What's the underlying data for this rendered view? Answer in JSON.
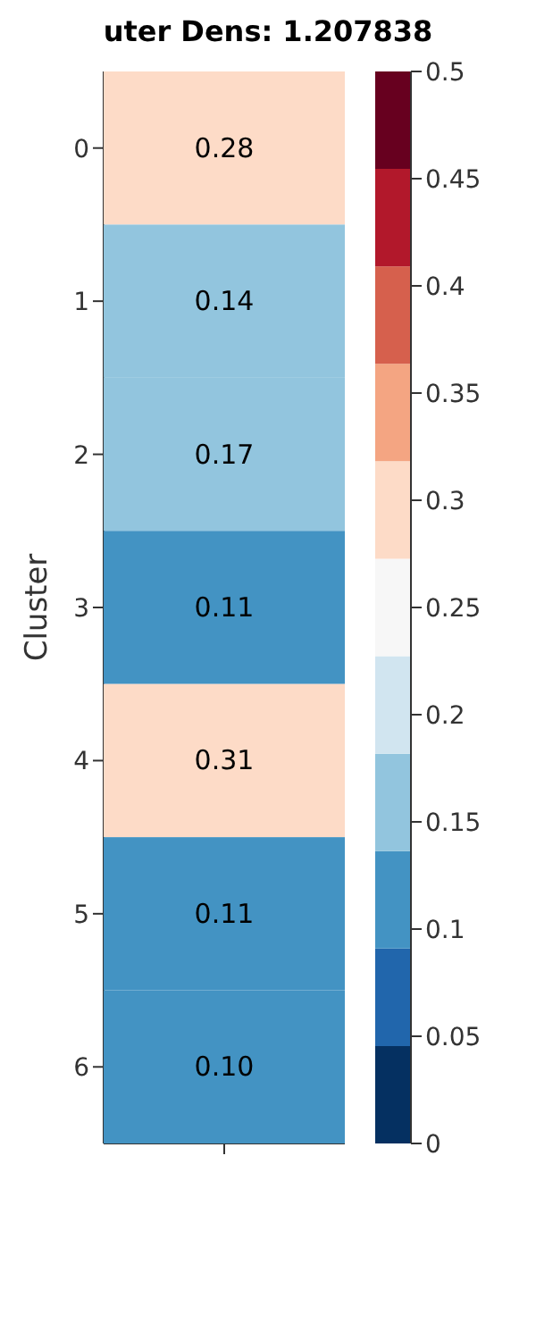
{
  "chart_data": {
    "type": "heatmap",
    "title": "uter Dens: 1.207838",
    "ylabel": "Cluster",
    "categories": [
      null
    ],
    "y_categories": [
      "0",
      "1",
      "2",
      "3",
      "4",
      "5",
      "6"
    ],
    "cells": [
      [
        0.28
      ],
      [
        0.14
      ],
      [
        0.17
      ],
      [
        0.11
      ],
      [
        0.31
      ],
      [
        0.11
      ],
      [
        0.1
      ]
    ],
    "cell_labels": [
      [
        "0.28"
      ],
      [
        "0.14"
      ],
      [
        "0.17"
      ],
      [
        "0.11"
      ],
      [
        "0.31"
      ],
      [
        "0.11"
      ],
      [
        "0.10"
      ]
    ],
    "clim": [
      0,
      0.5
    ],
    "cticks": [
      0,
      0.05,
      0.1,
      0.15,
      0.2,
      0.25,
      0.3,
      0.35,
      0.4,
      0.45,
      0.5
    ]
  }
}
